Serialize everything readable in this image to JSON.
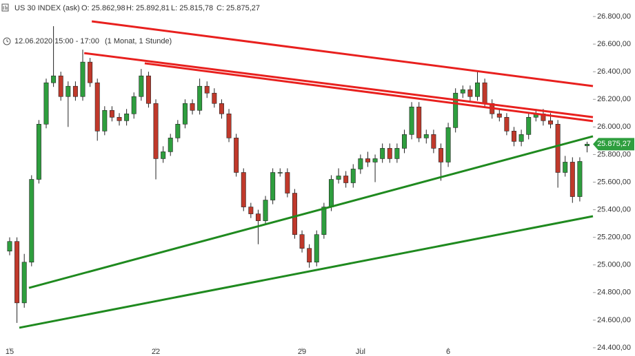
{
  "chart_data": {
    "type": "candlestick",
    "title": "US 30 INDEX (ask)",
    "ohlc_labels": [
      "O: 25.862,98",
      "H: 25.892,81",
      "L: 25.815,78",
      "C: 25.875,27"
    ],
    "period": "12.06.2020 15:00 - 17:00",
    "range_note": "(1 Monat, 1 Stunde)",
    "up_color": "#2e9e3e",
    "down_color": "#c0392b",
    "x": [
      0,
      0.25,
      0.5,
      0.75,
      1,
      1.25,
      1.5,
      1.75,
      2,
      2.25,
      2.5,
      2.75,
      3,
      3.25,
      3.5,
      3.75,
      4,
      4.25,
      4.5,
      4.75,
      5,
      5.25,
      5.5,
      5.75,
      6,
      6.25,
      6.5,
      6.75,
      7,
      7.25,
      7.5,
      7.75,
      8,
      8.25,
      8.5,
      8.75,
      9,
      9.25,
      9.5,
      9.75,
      10,
      10.25,
      10.5,
      10.75,
      11,
      11.25,
      11.5,
      11.75,
      12,
      12.25,
      12.5,
      12.75,
      13,
      13.25,
      13.5,
      13.75,
      14,
      14.25,
      14.5,
      14.75,
      15,
      15.25,
      15.5,
      15.75,
      16,
      16.25,
      16.5,
      16.75,
      17,
      17.25,
      17.5,
      17.75,
      18,
      18.25,
      18.5,
      18.75,
      19,
      19.25,
      19.5,
      19.75
    ],
    "open": [
      25100,
      25170,
      24725,
      25020,
      25620,
      26020,
      26320,
      26370,
      26220,
      26295,
      26220,
      26470,
      26320,
      25970,
      26120,
      26070,
      26045,
      26095,
      26220,
      26370,
      26170,
      25770,
      25820,
      25920,
      26020,
      26170,
      26120,
      26295,
      26245,
      26170,
      26095,
      25920,
      25670,
      25420,
      25370,
      25320,
      25470,
      25670,
      25670,
      25520,
      25220,
      25120,
      25020,
      25220,
      25420,
      25620,
      25645,
      25595,
      25695,
      25770,
      25745,
      25770,
      25845,
      25770,
      25845,
      25945,
      26145,
      25920,
      25945,
      25845,
      25745,
      25995,
      26245,
      26270,
      26220,
      26320,
      26170,
      26095,
      26070,
      25970,
      25895,
      25945,
      26070,
      26095,
      26045,
      26020,
      25670,
      25745,
      25495,
      25862.98
    ],
    "high": [
      25200,
      25200,
      25080,
      25650,
      26050,
      26350,
      26730,
      26400,
      26330,
      26330,
      26560,
      26500,
      26350,
      26150,
      26150,
      26100,
      26130,
      26250,
      26420,
      26400,
      26200,
      25860,
      25950,
      26050,
      26200,
      26200,
      26350,
      26330,
      26280,
      26200,
      26130,
      25950,
      25700,
      25450,
      25400,
      25500,
      25700,
      25700,
      25700,
      25550,
      25250,
      25150,
      25250,
      25450,
      25650,
      25700,
      25680,
      25730,
      25800,
      25820,
      25800,
      25880,
      25880,
      25880,
      25980,
      26180,
      26180,
      25980,
      25980,
      25880,
      26030,
      26280,
      26300,
      26300,
      26410,
      26350,
      26200,
      26130,
      26100,
      26000,
      25980,
      26100,
      26130,
      26130,
      26100,
      26050,
      25790,
      25780,
      25780,
      25892.81
    ],
    "low": [
      25070,
      24580,
      24690,
      24990,
      25590,
      25990,
      26290,
      26190,
      26000,
      26190,
      26190,
      26290,
      25900,
      25940,
      26040,
      26010,
      26010,
      26060,
      26190,
      26140,
      25620,
      25740,
      25790,
      25890,
      25990,
      26090,
      26090,
      26210,
      26140,
      26060,
      25890,
      25640,
      25390,
      25340,
      25150,
      25290,
      25440,
      25640,
      25490,
      25190,
      25090,
      24980,
      24990,
      25190,
      25390,
      25590,
      25560,
      25560,
      25660,
      25710,
      25600,
      25740,
      25740,
      25740,
      25810,
      25910,
      25890,
      25880,
      25810,
      25610,
      25710,
      25960,
      26210,
      26190,
      26190,
      26140,
      26060,
      26040,
      25940,
      25860,
      25860,
      25910,
      26040,
      26010,
      25990,
      25560,
      25640,
      25450,
      25460,
      25815.78
    ],
    "close": [
      25170,
      24725,
      25020,
      25620,
      26020,
      26320,
      26370,
      26220,
      26295,
      26220,
      26470,
      26320,
      25970,
      26120,
      26070,
      26045,
      26095,
      26220,
      26370,
      26170,
      25770,
      25820,
      25920,
      26020,
      26170,
      26120,
      26295,
      26245,
      26170,
      26095,
      25920,
      25670,
      25420,
      25370,
      25320,
      25470,
      25670,
      25670,
      25520,
      25220,
      25120,
      25020,
      25220,
      25420,
      25620,
      25645,
      25595,
      25695,
      25770,
      25745,
      25770,
      25845,
      25770,
      25845,
      25945,
      26145,
      25920,
      25945,
      25845,
      25745,
      25995,
      26245,
      26270,
      26220,
      26320,
      26170,
      26095,
      26070,
      25970,
      25895,
      25945,
      26070,
      26095,
      26045,
      26020,
      25670,
      25745,
      25495,
      25750,
      25875.27
    ],
    "last_price": {
      "value": 25875.27,
      "label": "25.875,27"
    },
    "last_price_color": "#2e9e3e",
    "trendlines": [
      {
        "color": "#e8201e",
        "x": [
          2.81,
          19.95
        ],
        "y": [
          26765,
          26296
        ]
      },
      {
        "color": "#e8201e",
        "x": [
          2.55,
          19.95
        ],
        "y": [
          26535,
          26071
        ]
      },
      {
        "color": "#e8201e",
        "x": [
          4.62,
          19.95
        ],
        "y": [
          26461,
          26042
        ]
      },
      {
        "color": "#1f8a1f",
        "x": [
          0.66,
          19.95
        ],
        "y": [
          24834,
          25932
        ]
      },
      {
        "color": "#1f8a1f",
        "x": [
          0.33,
          19.95
        ],
        "y": [
          24545,
          25353
        ]
      }
    ],
    "xlim": [
      -0.33,
      19.95
    ],
    "xticks": [
      {
        "value": 0,
        "label": "15"
      },
      {
        "value": 5,
        "label": "22"
      },
      {
        "value": 10,
        "label": "29"
      },
      {
        "value": 12,
        "label": "Jul"
      },
      {
        "value": 15,
        "label": "6"
      }
    ],
    "ylim": [
      24400,
      26800
    ],
    "yticks": [
      {
        "value": 24400,
        "label": "24.400,00"
      },
      {
        "value": 24600,
        "label": "24.600,00"
      },
      {
        "value": 24800,
        "label": "24.800,00"
      },
      {
        "value": 25000,
        "label": "25.000,00"
      },
      {
        "value": 25200,
        "label": "25.200,00"
      },
      {
        "value": 25400,
        "label": "25.400,00"
      },
      {
        "value": 25600,
        "label": "25.600,00"
      },
      {
        "value": 25800,
        "label": "25.800,00"
      },
      {
        "value": 26000,
        "label": "26.000,00"
      },
      {
        "value": 26200,
        "label": "26.200,00"
      },
      {
        "value": 26400,
        "label": "26.400,00"
      },
      {
        "value": 26600,
        "label": "26.600,00"
      },
      {
        "value": 26800,
        "label": "26.800,00"
      }
    ],
    "grid": false
  }
}
